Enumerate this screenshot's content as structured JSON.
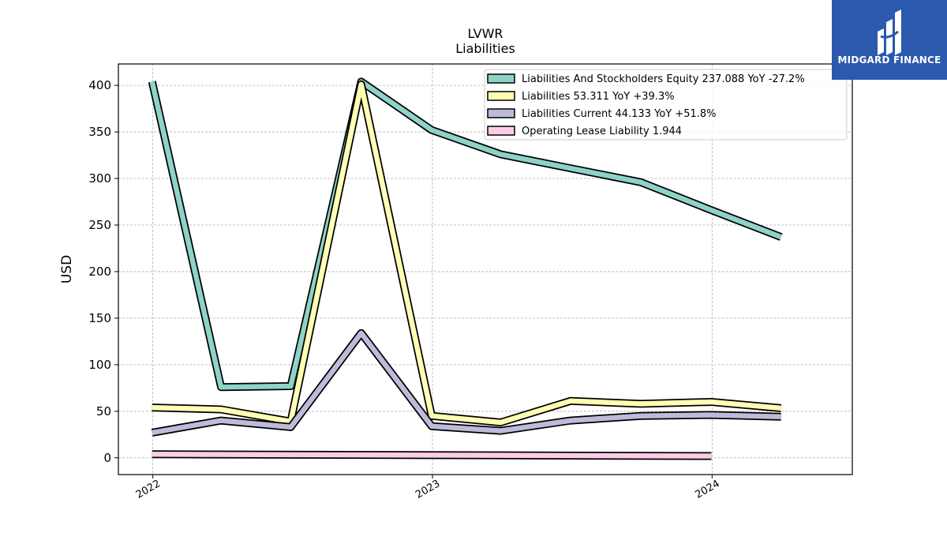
{
  "brand": {
    "name": "MIDGARD FINANCE",
    "bg_color": "#2a59ad"
  },
  "chart_data": {
    "type": "line",
    "title": "LVWR",
    "subtitle": "Liabilities",
    "xlabel": "",
    "ylabel": "USD",
    "x_ticks": [
      "2022",
      "2023",
      "2024"
    ],
    "y_ticks": [
      0,
      50,
      100,
      150,
      200,
      250,
      300,
      350,
      400
    ],
    "xlim": [
      "2021-11-17",
      "2024-07-02"
    ],
    "ylim": [
      -18,
      423
    ],
    "grid": true,
    "legend_position": "top-right",
    "x": [
      "2021-12-31",
      "2022-03-31",
      "2022-06-30",
      "2022-09-30",
      "2022-12-31",
      "2023-03-31",
      "2023-06-30",
      "2023-09-30",
      "2023-12-31",
      "2024-03-31"
    ],
    "series": [
      {
        "name": "Liabilities And Stockholders Equity",
        "legend_label": "Liabilities And Stockholders Equity  237.088 YoY -27.2%",
        "color": "#8dd3c7",
        "values": [
          404,
          76,
          77,
          404,
          352,
          326,
          311,
          296,
          266,
          237.088
        ]
      },
      {
        "name": "Liabilities",
        "legend_label": "Liabilities  53.311 YoY +39.3%",
        "color": "#ffffb3",
        "values": [
          54,
          52,
          39,
          401,
          45,
          38,
          61,
          58,
          60,
          53.311
        ]
      },
      {
        "name": "Liabilities Current",
        "legend_label": "Liabilities Current  44.133 YoY +51.8%",
        "color": "#bebada",
        "values": [
          27,
          40,
          33,
          134,
          34,
          29,
          40,
          45,
          46,
          44.133
        ]
      },
      {
        "name": "Operating Lease Liability",
        "legend_label": "Operating Lease Liability  1.944",
        "color": "#fccde5",
        "values": [
          3.8,
          null,
          null,
          null,
          2.9,
          null,
          null,
          null,
          1.944,
          null
        ]
      }
    ]
  }
}
